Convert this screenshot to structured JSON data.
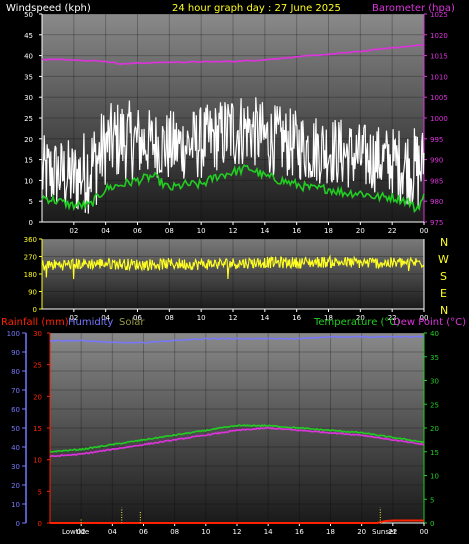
{
  "header": {
    "wind_label": "Windspeed (kph)",
    "title": "24 hour graph day : 27 June 2025",
    "baro_label": "Barometer (hpa)"
  },
  "colors": {
    "wind": "#ffffff",
    "gust": "#ffffff",
    "wind_avg": "#22cc22",
    "barometer": "#dd33dd",
    "direction": "#ffff22",
    "rain": "#ff2200",
    "humidity": "#7777ff",
    "solar": "#999944",
    "temperature": "#22cc22",
    "dewpoint": "#dd33dd",
    "axis": "#ffffff"
  },
  "x_ticks": [
    "02",
    "04",
    "06",
    "08",
    "10",
    "12",
    "14",
    "16",
    "18",
    "20",
    "22",
    "00"
  ],
  "direction_letters": [
    "N",
    "W",
    "S",
    "E",
    "N"
  ],
  "bottom_labels": {
    "rainfall": "Rainfall (mm)",
    "humidity": "Humidity",
    "solar": "Solar",
    "temperature": "Temperature (°C)",
    "dewpoint": "Dew Point (°C)",
    "lowtide": "Lowtide",
    "sunset": "Sunset"
  },
  "chart_data": [
    {
      "type": "line",
      "title": "24 hour graph day : 27 June 2025",
      "x_unit": "hour",
      "x_range": [
        0,
        24
      ],
      "left_axis": {
        "label": "Windspeed (kph)",
        "range": [
          0,
          50
        ],
        "ticks": [
          0,
          5,
          10,
          15,
          20,
          25,
          30,
          35,
          40,
          45,
          50
        ]
      },
      "right_axis": {
        "label": "Barometer (hpa)",
        "range": [
          975,
          1025
        ],
        "ticks": [
          975,
          980,
          985,
          990,
          995,
          1000,
          1005,
          1010,
          1015,
          1020,
          1025
        ]
      },
      "series": [
        {
          "name": "Windspeed",
          "axis": "left",
          "x": [
            0,
            1,
            2,
            3,
            3.5,
            4,
            5,
            6,
            7,
            8,
            9,
            10,
            11,
            12,
            13,
            14,
            15,
            16,
            17,
            18,
            19,
            20,
            21,
            22,
            23,
            23.7,
            24
          ],
          "y": [
            9,
            10,
            8,
            9,
            11,
            16,
            17,
            17,
            18,
            16,
            17,
            17,
            19,
            19,
            21,
            18,
            18,
            17,
            16,
            16,
            15,
            14,
            14,
            13,
            11,
            9,
            14
          ]
        },
        {
          "name": "Gust",
          "axis": "left",
          "x": [
            0,
            2,
            4,
            5,
            7,
            9,
            11,
            12,
            13,
            14,
            16,
            18,
            20,
            22,
            24
          ],
          "y": [
            19,
            18,
            26,
            28,
            25,
            25,
            27,
            30,
            29,
            27,
            25,
            24,
            22,
            21,
            21
          ]
        },
        {
          "name": "Wind average",
          "axis": "left",
          "x": [
            0,
            1,
            2,
            3,
            3.5,
            4,
            5,
            6,
            7,
            8,
            9,
            10,
            11,
            12,
            13,
            14,
            15,
            16,
            17,
            18,
            19,
            20,
            21,
            22,
            23,
            23.5,
            24
          ],
          "y": [
            6,
            5,
            4,
            4,
            6,
            8,
            9,
            10,
            11,
            8,
            9,
            9,
            11,
            12,
            13,
            11,
            10,
            9,
            8,
            8,
            7,
            7,
            6,
            6,
            5,
            3,
            6
          ]
        },
        {
          "name": "Barometer",
          "axis": "right",
          "x": [
            0,
            2,
            4,
            5,
            6,
            8,
            10,
            12,
            14,
            16,
            18,
            20,
            22,
            23,
            24
          ],
          "y": [
            1014.1,
            1014,
            1013.6,
            1013,
            1013.2,
            1013.4,
            1013.5,
            1013.6,
            1014,
            1014.7,
            1015.3,
            1016,
            1016.9,
            1017.2,
            1017.6
          ]
        }
      ]
    },
    {
      "type": "scatter",
      "title": "",
      "x_unit": "hour",
      "x_range": [
        0,
        24
      ],
      "left_axis": {
        "label": "",
        "range": [
          0,
          360
        ],
        "ticks": [
          0,
          90,
          180,
          270,
          360
        ]
      },
      "series": [
        {
          "name": "Wind direction",
          "x": [
            0,
            2,
            4,
            6,
            8,
            10,
            12,
            14,
            16,
            18,
            20,
            22,
            24
          ],
          "y": [
            225,
            230,
            235,
            228,
            232,
            230,
            235,
            240,
            238,
            242,
            238,
            236,
            240
          ]
        }
      ]
    },
    {
      "type": "line",
      "title": "",
      "x_unit": "hour",
      "x_range": [
        0,
        24
      ],
      "left_axis_humidity": {
        "label": "Humidity",
        "range": [
          0,
          100
        ],
        "ticks": [
          0,
          10,
          20,
          30,
          40,
          50,
          60,
          70,
          80,
          90,
          100
        ]
      },
      "left_axis_rain": {
        "label": "Rainfall (mm)",
        "range": [
          0,
          30
        ],
        "ticks": [
          0,
          5,
          10,
          15,
          20,
          25,
          30
        ]
      },
      "right_axis": {
        "label": "Temperature (°C)",
        "range": [
          0,
          40
        ],
        "ticks": [
          0,
          5,
          10,
          15,
          20,
          25,
          30,
          35,
          40
        ]
      },
      "series": [
        {
          "name": "Humidity",
          "axis": "humidity",
          "x": [
            0,
            2,
            4,
            6,
            8,
            10,
            12,
            14,
            16,
            18,
            20,
            22,
            24
          ],
          "y": [
            96,
            96,
            95,
            95,
            96,
            97,
            97,
            97,
            97,
            98,
            98,
            98,
            98
          ]
        },
        {
          "name": "Temperature",
          "axis": "right",
          "x": [
            0,
            2,
            4,
            6,
            8,
            10,
            12,
            14,
            16,
            18,
            20,
            22,
            24
          ],
          "y": [
            15,
            15.5,
            16.5,
            17.5,
            18.5,
            19.5,
            20.5,
            20.5,
            20,
            19.5,
            19,
            18,
            17
          ]
        },
        {
          "name": "Dew Point",
          "axis": "right",
          "x": [
            0,
            2,
            4,
            6,
            8,
            10,
            12,
            14,
            16,
            18,
            20,
            22,
            24
          ],
          "y": [
            14,
            14.5,
            15.5,
            16.5,
            17.5,
            18.5,
            19.5,
            20,
            19.5,
            19,
            18.5,
            17.5,
            16.5
          ]
        },
        {
          "name": "Rainfall",
          "axis": "rain",
          "x": [
            0,
            4,
            8,
            12,
            16,
            20,
            21,
            21.5,
            22,
            24
          ],
          "y": [
            0,
            0,
            0,
            0,
            0,
            0,
            0,
            0.3,
            0.4,
            0.4
          ]
        },
        {
          "name": "Solar",
          "axis": "humidity",
          "x": [
            0,
            1.8,
            2,
            3.5,
            4.3,
            4.6,
            5.6,
            5.8,
            21.2,
            21.4,
            24
          ],
          "y": [
            0,
            0,
            2,
            0,
            0,
            8,
            0,
            6,
            8,
            0,
            0
          ]
        }
      ]
    }
  ]
}
